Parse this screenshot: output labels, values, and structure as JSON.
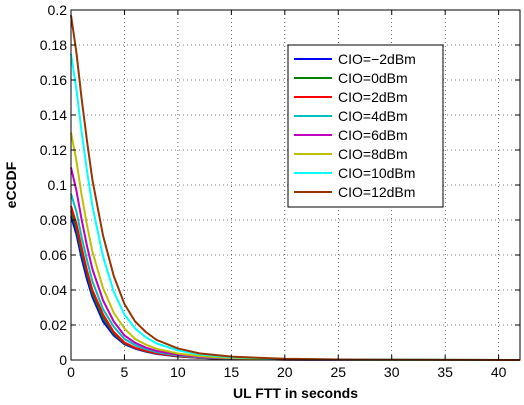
{
  "chart_data": {
    "type": "line",
    "title": "",
    "xlabel": "UL FTT in seconds",
    "ylabel": "eCCDF",
    "xlim": [
      0,
      42
    ],
    "ylim": [
      0,
      0.2
    ],
    "xticks": [
      0,
      5,
      10,
      15,
      20,
      25,
      30,
      35,
      40
    ],
    "yticks": [
      0,
      0.02,
      0.04,
      0.06,
      0.08,
      0.1,
      0.12,
      0.14,
      0.16,
      0.18,
      0.2
    ],
    "xtick_labels": [
      "0",
      "5",
      "10",
      "15",
      "20",
      "25",
      "30",
      "35",
      "40"
    ],
    "ytick_labels": [
      "0",
      "0.02",
      "0.04",
      "0.06",
      "0.08",
      "0.1",
      "0.12",
      "0.14",
      "0.16",
      "0.18",
      "0.2"
    ],
    "grid": true,
    "legend_position": "top-right",
    "series": [
      {
        "name": "CIO=−2dBm",
        "color": "#0000ff",
        "x": [
          0,
          0.5,
          1,
          1.5,
          2,
          3,
          4,
          5,
          6,
          7,
          8,
          10,
          12,
          15,
          20,
          25,
          30,
          35,
          42
        ],
        "y": [
          0.082,
          0.072,
          0.058,
          0.046,
          0.036,
          0.022,
          0.014,
          0.009,
          0.0065,
          0.0048,
          0.0035,
          0.002,
          0.0012,
          0.0006,
          0.0002,
          0.0001,
          5e-05,
          0,
          0
        ]
      },
      {
        "name": "CIO=0dBm",
        "color": "#008000",
        "x": [
          0,
          0.5,
          1,
          1.5,
          2,
          3,
          4,
          5,
          6,
          7,
          8,
          10,
          12,
          15,
          20,
          25,
          30,
          35,
          42
        ],
        "y": [
          0.085,
          0.075,
          0.061,
          0.049,
          0.038,
          0.024,
          0.015,
          0.0095,
          0.0068,
          0.005,
          0.0037,
          0.0021,
          0.0013,
          0.0006,
          0.0002,
          0.0001,
          5e-05,
          0,
          0
        ]
      },
      {
        "name": "CIO=2dBm",
        "color": "#ff0000",
        "x": [
          0,
          0.5,
          1,
          1.5,
          2,
          3,
          4,
          5,
          6,
          7,
          8,
          10,
          12,
          15,
          20,
          25,
          30,
          35,
          42
        ],
        "y": [
          0.088,
          0.078,
          0.064,
          0.051,
          0.04,
          0.026,
          0.016,
          0.01,
          0.007,
          0.0052,
          0.0038,
          0.0022,
          0.0013,
          0.0007,
          0.0002,
          0.0001,
          5e-05,
          0,
          0
        ]
      },
      {
        "name": "CIO=4dBm",
        "color": "#00bfbf",
        "x": [
          0,
          0.5,
          1,
          1.5,
          2,
          3,
          4,
          5,
          6,
          7,
          8,
          10,
          12,
          15,
          20,
          25,
          30,
          35,
          42
        ],
        "y": [
          0.095,
          0.085,
          0.07,
          0.057,
          0.045,
          0.029,
          0.019,
          0.012,
          0.0085,
          0.0062,
          0.0045,
          0.0026,
          0.0015,
          0.0008,
          0.0003,
          0.0001,
          5e-05,
          0,
          0
        ]
      },
      {
        "name": "CIO=6dBm",
        "color": "#bf00bf",
        "x": [
          0,
          0.5,
          1,
          1.5,
          2,
          3,
          4,
          5,
          6,
          7,
          8,
          10,
          12,
          15,
          20,
          25,
          30,
          35,
          42
        ],
        "y": [
          0.11,
          0.097,
          0.08,
          0.065,
          0.052,
          0.034,
          0.022,
          0.014,
          0.0098,
          0.0071,
          0.0052,
          0.003,
          0.0018,
          0.0009,
          0.0003,
          0.00015,
          0.0001,
          5e-05,
          0
        ]
      },
      {
        "name": "CIO=8dBm",
        "color": "#bfbf00",
        "x": [
          0,
          0.5,
          1,
          1.5,
          2,
          3,
          4,
          5,
          6,
          7,
          8,
          10,
          12,
          15,
          20,
          25,
          30,
          35,
          42
        ],
        "y": [
          0.13,
          0.114,
          0.094,
          0.077,
          0.062,
          0.041,
          0.027,
          0.018,
          0.012,
          0.0088,
          0.0064,
          0.0037,
          0.0022,
          0.0011,
          0.0004,
          0.0002,
          0.0001,
          5e-05,
          0
        ]
      },
      {
        "name": "CIO=10dBm",
        "color": "#00ffff",
        "x": [
          0,
          0.5,
          1,
          1.5,
          2,
          3,
          4,
          5,
          6,
          7,
          8,
          10,
          12,
          15,
          20,
          25,
          30,
          35,
          42
        ],
        "y": [
          0.175,
          0.155,
          0.13,
          0.108,
          0.088,
          0.059,
          0.039,
          0.026,
          0.018,
          0.013,
          0.0095,
          0.0055,
          0.0032,
          0.0016,
          0.0006,
          0.0003,
          0.00015,
          7e-05,
          0
        ]
      },
      {
        "name": "CIO=12dBm",
        "color": "#993300",
        "x": [
          0,
          0.5,
          1,
          1.5,
          2,
          3,
          4,
          5,
          6,
          7,
          8,
          10,
          12,
          15,
          20,
          25,
          30,
          35,
          42
        ],
        "y": [
          0.197,
          0.176,
          0.149,
          0.125,
          0.103,
          0.071,
          0.048,
          0.032,
          0.022,
          0.016,
          0.0115,
          0.0066,
          0.0038,
          0.0019,
          0.0007,
          0.0003,
          0.00015,
          7e-05,
          0
        ]
      }
    ]
  }
}
